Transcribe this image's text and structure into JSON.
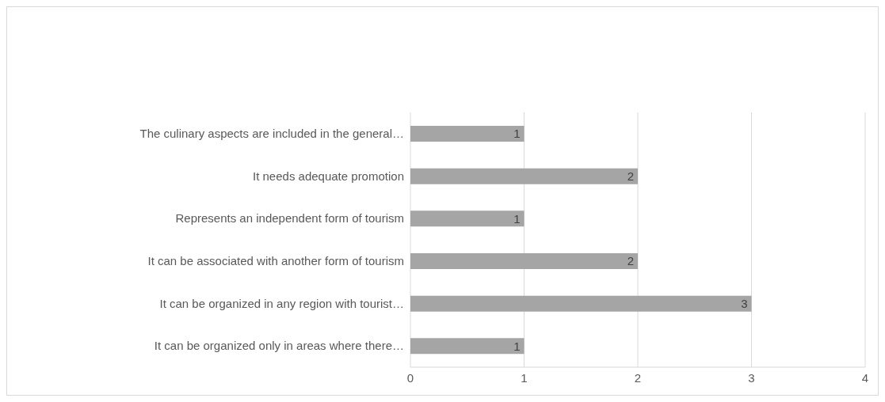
{
  "chart_data": {
    "type": "bar",
    "orientation": "horizontal",
    "categories": [
      "The culinary aspects are included in the general…",
      "It needs adequate promotion",
      "Represents an independent form of tourism",
      "It can be associated with another form of tourism",
      "It can be organized in any region with tourist…",
      "It can be organized only in areas where there…"
    ],
    "values": [
      1,
      2,
      1,
      2,
      3,
      1
    ],
    "color": "#a5a5a5",
    "xlim": [
      0,
      4
    ],
    "xticks": [
      0,
      1,
      2,
      3,
      4
    ],
    "grid": "x",
    "data_labels": true,
    "legend": false
  }
}
